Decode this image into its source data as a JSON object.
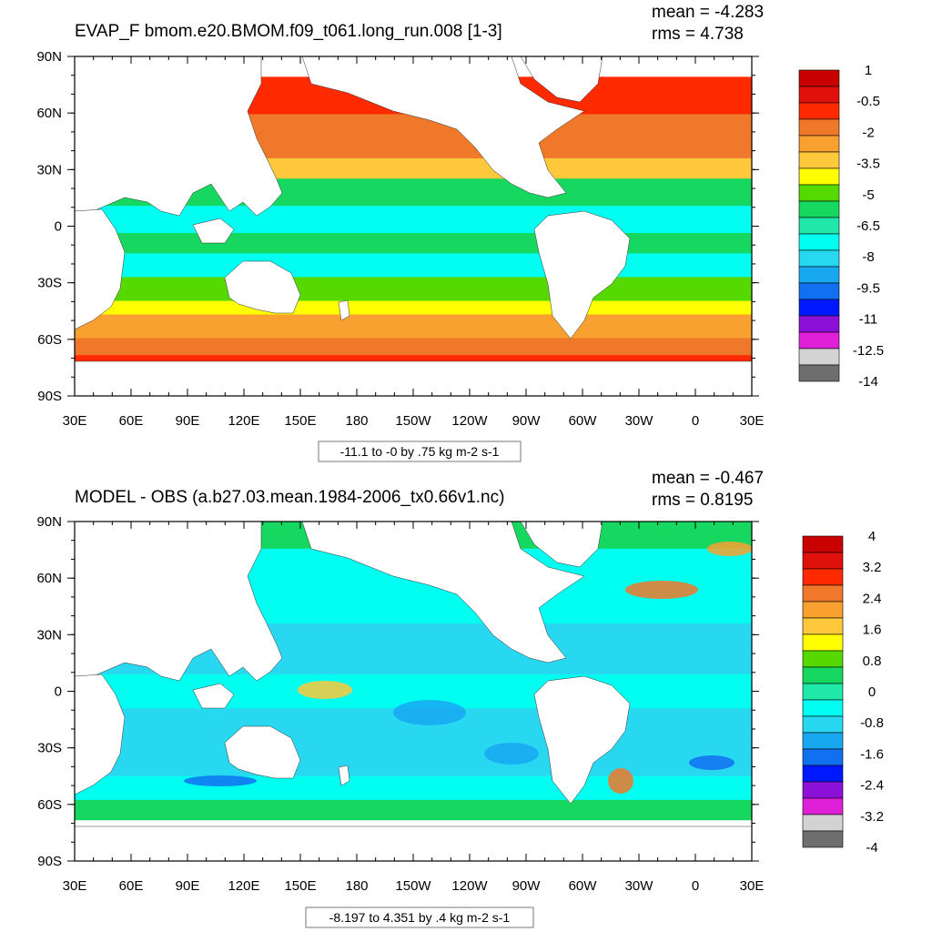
{
  "colors": {
    "land": "#ffffff",
    "frame": "#000000",
    "contour": "#222222"
  },
  "x_tick_labels": [
    "30E",
    "60E",
    "90E",
    "120E",
    "150E",
    "180",
    "150W",
    "120W",
    "90W",
    "60W",
    "30W",
    "0",
    "30E"
  ],
  "y_tick_labels": [
    "90N",
    "60N",
    "30N",
    "0",
    "30S",
    "60S",
    "90S"
  ],
  "panels": [
    {
      "title": "EVAP_F bmom.e20.BMOM.f09_t061.long_run.008 [1-3]",
      "mean_label": "mean = -4.283",
      "rms_label": "rms = 4.738",
      "contour_info": "-11.1 to -0 by .75 kg m-2 s-1",
      "colorbar_labels": [
        "1",
        "-0.5",
        "-2",
        "-3.5",
        "-5",
        "-6.5",
        "-8",
        "-9.5",
        "-11",
        "-12.5",
        "-14"
      ]
    },
    {
      "title": "MODEL - OBS (a.b27.03.mean.1984-2006_tx0.66v1.nc)",
      "mean_label": "mean = -0.467",
      "rms_label": "rms = 0.8195",
      "contour_info": "-8.197 to 4.351 by .4 kg m-2 s-1",
      "colorbar_labels": [
        "4",
        "3.2",
        "2.4",
        "1.6",
        "0.8",
        "0",
        "-0.8",
        "-1.6",
        "-2.4",
        "-3.2",
        "-4"
      ]
    }
  ],
  "chart_data": [
    {
      "type": "heatmap",
      "title": "EVAP_F bmom.e20.BMOM.f09_t061.long_run.008 [1-3]",
      "projection": "cylindrical equidistant",
      "x_ticks": [
        "30E",
        "60E",
        "90E",
        "120E",
        "150E",
        "180",
        "150W",
        "120W",
        "90W",
        "60W",
        "30W",
        "0",
        "30E"
      ],
      "y_ticks": [
        "90N",
        "60N",
        "30N",
        "0",
        "30S",
        "60S",
        "90S"
      ],
      "lon_range": [
        30,
        390
      ],
      "lat_range": [
        -90,
        90
      ],
      "mean": -4.283,
      "rms": 4.738,
      "contour_min": -11.1,
      "contour_max": 0,
      "contour_interval": 0.75,
      "units": "kg m-2 s-1",
      "colorbar": {
        "label_values": [
          1,
          -0.5,
          -2,
          -3.5,
          -5,
          -6.5,
          -8,
          -9.5,
          -11,
          -12.5,
          -14
        ],
        "colors": [
          "#c80000",
          "#e0100b",
          "#ff2a00",
          "#f0782a",
          "#f8a030",
          "#fdc83c",
          "#ffff00",
          "#56d900",
          "#16d760",
          "#20e8a8",
          "#00fff0",
          "#28d8f0",
          "#18a8f0",
          "#1070f0",
          "#0018ff",
          "#8c10d8",
          "#e020d8",
          "#d3d3d3",
          "#6e6e6e"
        ]
      }
    },
    {
      "type": "heatmap",
      "title": "MODEL - OBS (a.b27.03.mean.1984-2006_tx0.66v1.nc)",
      "projection": "cylindrical equidistant",
      "x_ticks": [
        "30E",
        "60E",
        "90E",
        "120E",
        "150E",
        "180",
        "150W",
        "120W",
        "90W",
        "60W",
        "30W",
        "0",
        "30E"
      ],
      "y_ticks": [
        "90N",
        "60N",
        "30N",
        "0",
        "30S",
        "60S",
        "90S"
      ],
      "lon_range": [
        30,
        390
      ],
      "lat_range": [
        -90,
        90
      ],
      "mean": -0.467,
      "rms": 0.8195,
      "contour_min": -8.197,
      "contour_max": 4.351,
      "contour_interval": 0.4,
      "units": "kg m-2 s-1",
      "colorbar": {
        "label_values": [
          4,
          3.2,
          2.4,
          1.6,
          0.8,
          0,
          -0.8,
          -1.6,
          -2.4,
          -3.2,
          -4
        ],
        "colors": [
          "#c80000",
          "#e0100b",
          "#ff2a00",
          "#f0782a",
          "#f8a030",
          "#fdc83c",
          "#ffff00",
          "#56d900",
          "#16d760",
          "#20e8a8",
          "#00fff0",
          "#28d8f0",
          "#18a8f0",
          "#1070f0",
          "#0018ff",
          "#8c10d8",
          "#e020d8",
          "#d3d3d3",
          "#6e6e6e"
        ]
      }
    }
  ]
}
